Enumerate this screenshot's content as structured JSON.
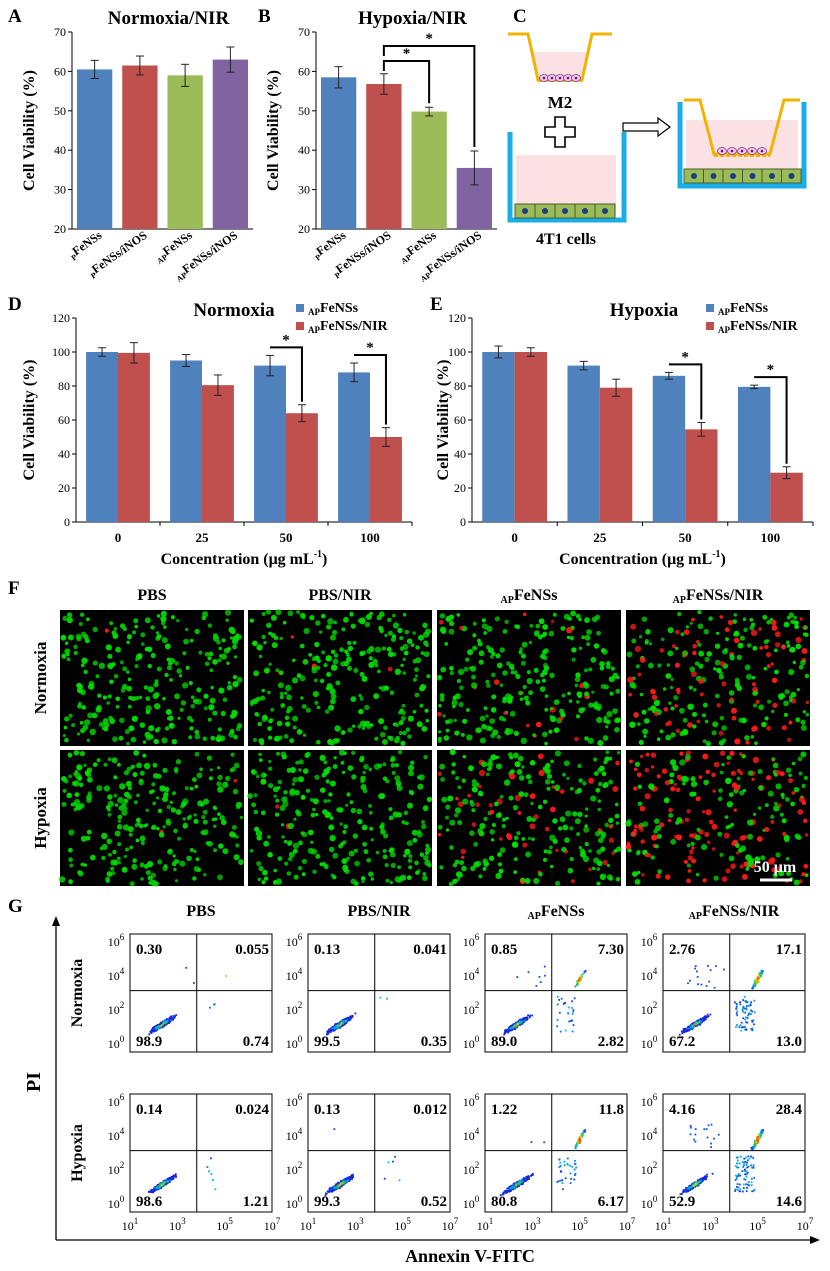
{
  "colors": {
    "blue": "#4f81bd",
    "red": "#c0504d",
    "green": "#9bbb59",
    "purple": "#8064a2",
    "yellow": "#f0b400",
    "cyan": "#19aee6",
    "cell_green": "#00dd00",
    "cell_red": "#ff1a1a"
  },
  "panels": {
    "a": "A",
    "b": "B",
    "c": "C",
    "d": "D",
    "e": "E",
    "f": "F",
    "g": "G"
  },
  "chart_data": [
    {
      "id": "A",
      "type": "bar",
      "title": "Normoxia/NIR",
      "ylabel": "Cell Viability (%)",
      "ylim": [
        20,
        70
      ],
      "yticks": [
        20,
        30,
        40,
        50,
        60,
        70
      ],
      "categories": [
        {
          "sub": "P",
          "main": "FeNSs"
        },
        {
          "sub": "P",
          "main": "FeNSs/iNOS"
        },
        {
          "sub": "AP",
          "main": "FeNSs"
        },
        {
          "sub": "AP",
          "main": "FeNSs/iNOS"
        }
      ],
      "values": [
        60.5,
        61.5,
        59.0,
        63.0
      ],
      "errors": [
        2.3,
        2.4,
        2.8,
        3.2
      ],
      "bar_colors": [
        "blue",
        "red",
        "green",
        "purple"
      ],
      "significance": []
    },
    {
      "id": "B",
      "type": "bar",
      "title": "Hypoxia/NIR",
      "ylabel": "Cell Viability (%)",
      "ylim": [
        20,
        70
      ],
      "yticks": [
        20,
        30,
        40,
        50,
        60,
        70
      ],
      "categories": [
        {
          "sub": "P",
          "main": "FeNSs"
        },
        {
          "sub": "P",
          "main": "FeNSs/iNOS"
        },
        {
          "sub": "AP",
          "main": "FeNSs"
        },
        {
          "sub": "AP",
          "main": "FeNSs/iNOS"
        }
      ],
      "values": [
        58.5,
        56.8,
        49.8,
        35.5
      ],
      "errors": [
        2.7,
        2.6,
        1.1,
        4.3
      ],
      "bar_colors": [
        "blue",
        "red",
        "green",
        "purple"
      ],
      "significance": [
        {
          "from": 1,
          "to": 2,
          "label": "*"
        },
        {
          "from": 1,
          "to": 3,
          "label": "*"
        }
      ]
    },
    {
      "id": "D",
      "type": "bar",
      "title": "Normoxia",
      "ylabel": "Cell Viability (%)",
      "xlabel": "Concentration (μg mL",
      "xlabel_sup": "-1",
      "xlabel_end": ")",
      "ylim": [
        0,
        120
      ],
      "yticks": [
        0,
        20,
        40,
        60,
        80,
        100,
        120
      ],
      "categories": [
        "0",
        "25",
        "50",
        "100"
      ],
      "legend_position": "top-right",
      "series": [
        {
          "name_sub": "AP",
          "name": "FeNSs",
          "color": "blue",
          "values": [
            100,
            95,
            92,
            88
          ],
          "errors": [
            2.5,
            3.5,
            6,
            5.5
          ]
        },
        {
          "name_sub": "AP",
          "name": "FeNSs/NIR",
          "color": "red",
          "values": [
            99.5,
            80.5,
            64,
            50
          ],
          "errors": [
            6,
            6,
            5,
            5.5
          ]
        }
      ],
      "significance": [
        {
          "category": 2,
          "label": "*"
        },
        {
          "category": 3,
          "label": "*"
        }
      ]
    },
    {
      "id": "E",
      "type": "bar",
      "title": "Hypoxia",
      "ylabel": "Cell Viability (%)",
      "xlabel": "Concentration (μg mL",
      "xlabel_sup": "-1",
      "xlabel_end": ")",
      "ylim": [
        0,
        120
      ],
      "yticks": [
        0,
        20,
        40,
        60,
        80,
        100,
        120
      ],
      "categories": [
        "0",
        "25",
        "50",
        "100"
      ],
      "legend_position": "top-right",
      "series": [
        {
          "name_sub": "AP",
          "name": "FeNSs",
          "color": "blue",
          "values": [
            100,
            92,
            86,
            79.5
          ],
          "errors": [
            3.5,
            2.5,
            2,
            1
          ]
        },
        {
          "name_sub": "AP",
          "name": "FeNSs/NIR",
          "color": "red",
          "values": [
            100,
            79,
            54.5,
            29
          ],
          "errors": [
            2.5,
            5,
            4,
            3.5
          ]
        }
      ],
      "significance": [
        {
          "category": 2,
          "label": "*"
        },
        {
          "category": 3,
          "label": "*"
        }
      ]
    },
    {
      "id": "G",
      "type": "scatter",
      "xlabel": "Annexin V-FITC",
      "ylabel": "PI",
      "axis_ticks": [
        {
          "base": "10",
          "exp": "1"
        },
        {
          "base": "10",
          "exp": "3"
        },
        {
          "base": "10",
          "exp": "5"
        },
        {
          "base": "10",
          "exp": "7"
        }
      ],
      "y_axis_ticks": [
        {
          "base": "10",
          "exp": "0"
        },
        {
          "base": "10",
          "exp": "2"
        },
        {
          "base": "10",
          "exp": "4"
        },
        {
          "base": "10",
          "exp": "6"
        }
      ],
      "columns": [
        {
          "sub": "",
          "main": "PBS"
        },
        {
          "sub": "",
          "main": "PBS/NIR"
        },
        {
          "sub": "AP",
          "main": "FeNSs"
        },
        {
          "sub": "AP",
          "main": "FeNSs/NIR"
        }
      ],
      "rows": [
        "Normoxia",
        "Hypoxia"
      ],
      "quadrants": [
        [
          {
            "ul": "0.30",
            "ur": "0.055",
            "ll": "98.9",
            "lr": "0.74"
          },
          {
            "ul": "0.13",
            "ur": "0.041",
            "ll": "99.5",
            "lr": "0.35"
          },
          {
            "ul": "0.85",
            "ur": "7.30",
            "ll": "89.0",
            "lr": "2.82"
          },
          {
            "ul": "2.76",
            "ur": "17.1",
            "ll": "67.2",
            "lr": "13.0"
          }
        ],
        [
          {
            "ul": "0.14",
            "ur": "0.024",
            "ll": "98.6",
            "lr": "1.21"
          },
          {
            "ul": "0.13",
            "ur": "0.012",
            "ll": "99.3",
            "lr": "0.52"
          },
          {
            "ul": "1.22",
            "ur": "11.8",
            "ll": "80.8",
            "lr": "6.17"
          },
          {
            "ul": "4.16",
            "ur": "28.4",
            "ll": "52.9",
            "lr": "14.6"
          }
        ]
      ]
    }
  ],
  "schematic": {
    "m2_label": "M2",
    "cells_label": "4T1 cells"
  },
  "microscopy": {
    "columns": [
      {
        "sub": "",
        "main": "PBS"
      },
      {
        "sub": "",
        "main": "PBS/NIR"
      },
      {
        "sub": "AP",
        "main": "FeNSs"
      },
      {
        "sub": "AP",
        "main": "FeNSs/NIR"
      }
    ],
    "rows": [
      "Normoxia",
      "Hypoxia"
    ],
    "dead_fraction": [
      [
        0.005,
        0.01,
        0.06,
        0.3
      ],
      [
        0.005,
        0.01,
        0.2,
        0.5
      ]
    ],
    "scale_bar": "50 μm"
  }
}
